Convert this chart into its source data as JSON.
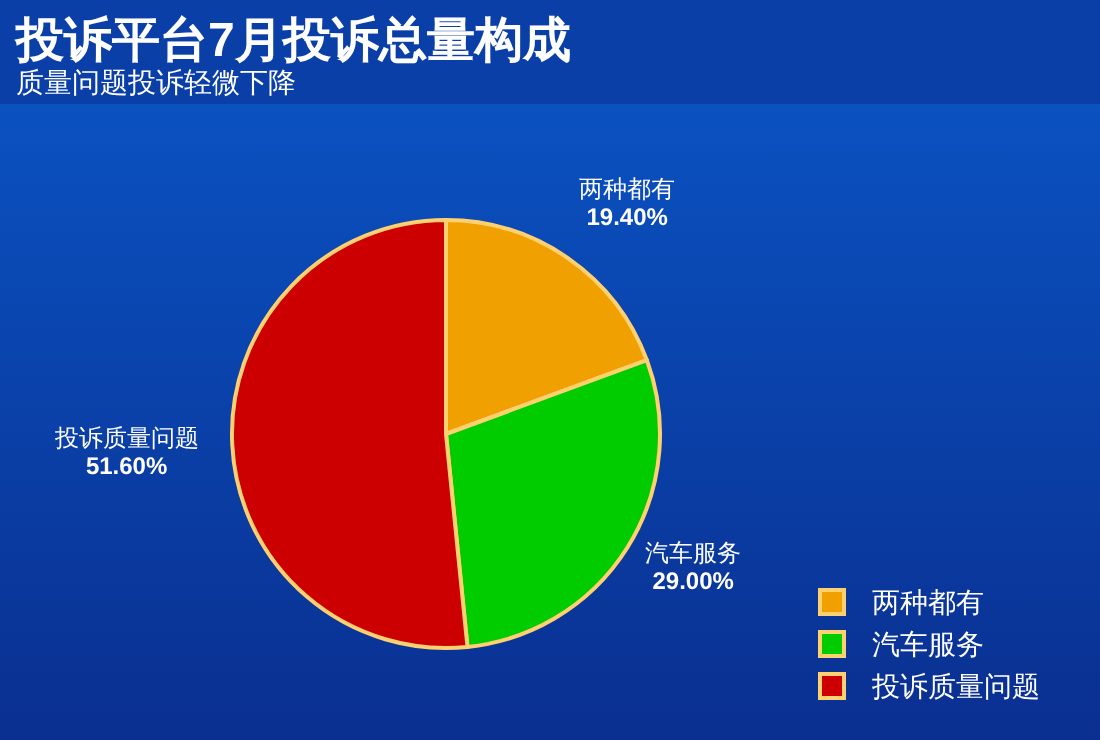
{
  "chart_data": {
    "type": "pie",
    "title": "投诉平台7月投诉总量构成",
    "subtitle": "质量问题投诉轻微下降",
    "categories": [
      "两种都有",
      "汽车服务",
      "投诉质量问题"
    ],
    "values": [
      19.4,
      29.0,
      51.6
    ],
    "value_labels": [
      "19.40%",
      "29.00%",
      "51.60%"
    ],
    "colors": [
      "#f0a000",
      "#00cc00",
      "#cc0000"
    ],
    "legend": "bottom right"
  }
}
